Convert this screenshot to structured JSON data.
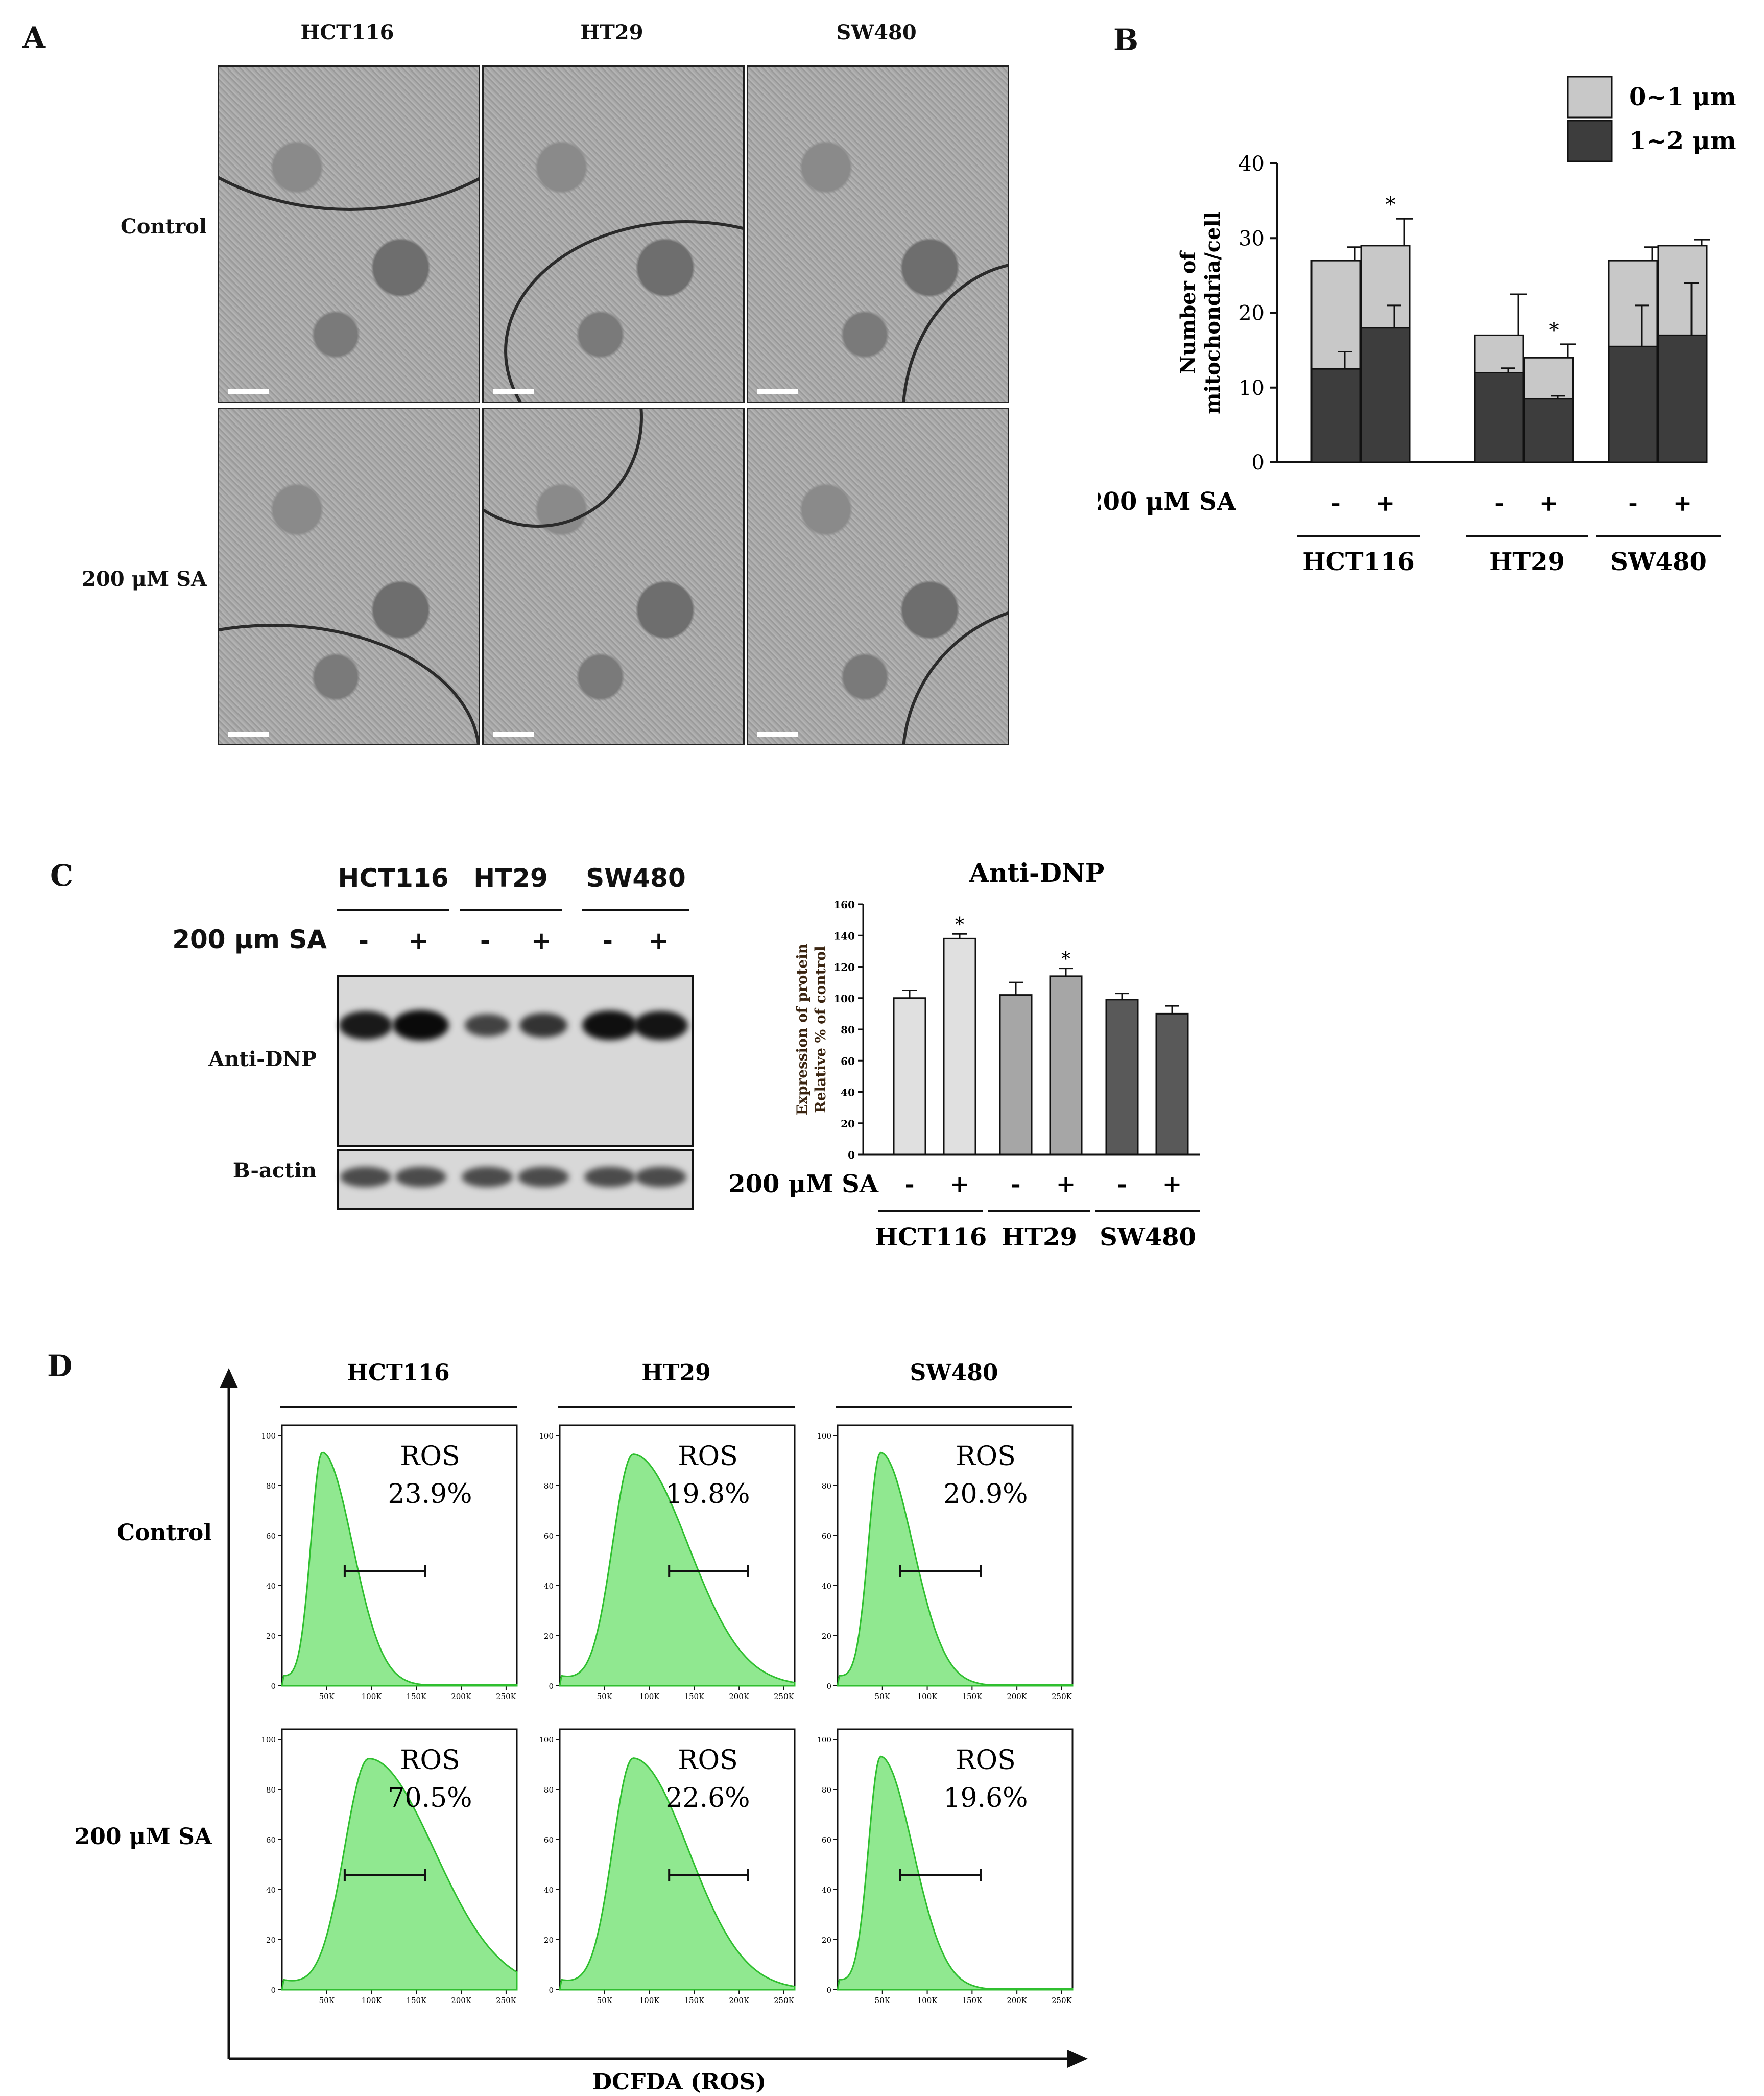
{
  "panels": {
    "A": {
      "letter": "A",
      "columns": [
        "HCT116",
        "HT29",
        "SW480"
      ],
      "rows": [
        "Control",
        "200 μM SA"
      ]
    },
    "B": {
      "letter": "B",
      "treatment_label": "200 μM SA",
      "chart_data": {
        "type": "bar",
        "stacked": true,
        "ylabel": "Number of mitochondria/cell",
        "ylim": [
          0,
          40
        ],
        "yticks": [
          0,
          10,
          20,
          30,
          40
        ],
        "groups": [
          "HCT116",
          "HT29",
          "SW480"
        ],
        "categories": [
          "-",
          "+",
          "-",
          "+",
          "-",
          "+"
        ],
        "series": [
          {
            "name": "0~1 μm",
            "color": "#c8c8c8",
            "totals": [
              27,
              29,
              17,
              14,
              27,
              29
            ],
            "total_errors": [
              1.8,
              3.6,
              5.5,
              1.8,
              1.8,
              0.8
            ]
          },
          {
            "name": "1~2 μm",
            "color": "#3d3d3d",
            "values": [
              12.5,
              18,
              12,
              8.5,
              15.5,
              17
            ],
            "errors": [
              2.3,
              3.0,
              0.6,
              0.4,
              5.5,
              7.0
            ]
          }
        ],
        "significance": [
          "",
          "*",
          "",
          "*",
          "",
          ""
        ],
        "legend_position": "top-right"
      }
    },
    "C": {
      "letter": "C",
      "blot": {
        "groups": [
          "HCT116",
          "HT29",
          "SW480"
        ],
        "treatment_label": "200 μm SA",
        "signs": [
          "-",
          "+",
          "-",
          "+",
          "-",
          "+"
        ],
        "row_labels": [
          "Anti-DNP",
          "B-actin"
        ]
      },
      "chart_data": {
        "type": "bar",
        "title": "Anti-DNP",
        "ylabel": "Expression of protein Relative % of control",
        "ylim": [
          0,
          160
        ],
        "yticks": [
          0,
          20,
          40,
          60,
          80,
          100,
          120,
          140,
          160
        ],
        "treatment_label": "200 μM SA",
        "categories": [
          "-",
          "+",
          "-",
          "+",
          "-",
          "+"
        ],
        "groups": [
          "HCT116",
          "HT29",
          "SW480"
        ],
        "values": [
          100,
          138,
          102,
          114,
          99,
          90
        ],
        "errors": [
          5,
          3,
          8,
          5,
          4,
          5
        ],
        "colors": [
          "#e0e0e0",
          "#e0e0e0",
          "#a6a6a6",
          "#a6a6a6",
          "#595959",
          "#595959"
        ],
        "significance": [
          "",
          "*",
          "",
          "*",
          "",
          ""
        ]
      }
    },
    "D": {
      "letter": "D",
      "columns": [
        "HCT116",
        "HT29",
        "SW480"
      ],
      "rows": [
        "Control",
        "200 μM SA"
      ],
      "xlabel": "DCFDA (ROS)",
      "xticks": [
        "50K",
        "100K",
        "150K",
        "200K",
        "250K"
      ],
      "yticks": [
        "0",
        "20",
        "40",
        "60",
        "80",
        "100"
      ],
      "ros_label": "ROS",
      "chart_data": {
        "type": "area",
        "xlabel": "DCFDA (ROS)",
        "xlim": [
          0,
          262000
        ],
        "ylim": [
          0,
          100
        ],
        "fill_color": "#90e890",
        "line_color": "#2fbf2f",
        "histograms": [
          {
            "row": "Control",
            "column": "HCT116",
            "ros_percent": "23.9%",
            "peak_x": 45000,
            "gate": [
              70000,
              160000
            ]
          },
          {
            "row": "Control",
            "column": "HT29",
            "ros_percent": "19.8%",
            "peak_x": 82000,
            "gate": [
              122000,
              210000
            ]
          },
          {
            "row": "Control",
            "column": "SW480",
            "ros_percent": "20.9%",
            "peak_x": 48000,
            "gate": [
              70000,
              160000
            ]
          },
          {
            "row": "200 μM SA",
            "column": "HCT116",
            "ros_percent": "70.5%",
            "peak_x": 97000,
            "gate": [
              70000,
              160000
            ]
          },
          {
            "row": "200 μM SA",
            "column": "HT29",
            "ros_percent": "22.6%",
            "peak_x": 82000,
            "gate": [
              122000,
              210000
            ]
          },
          {
            "row": "200 μM SA",
            "column": "SW480",
            "ros_percent": "19.6%",
            "peak_x": 48000,
            "gate": [
              70000,
              160000
            ]
          }
        ]
      }
    }
  }
}
